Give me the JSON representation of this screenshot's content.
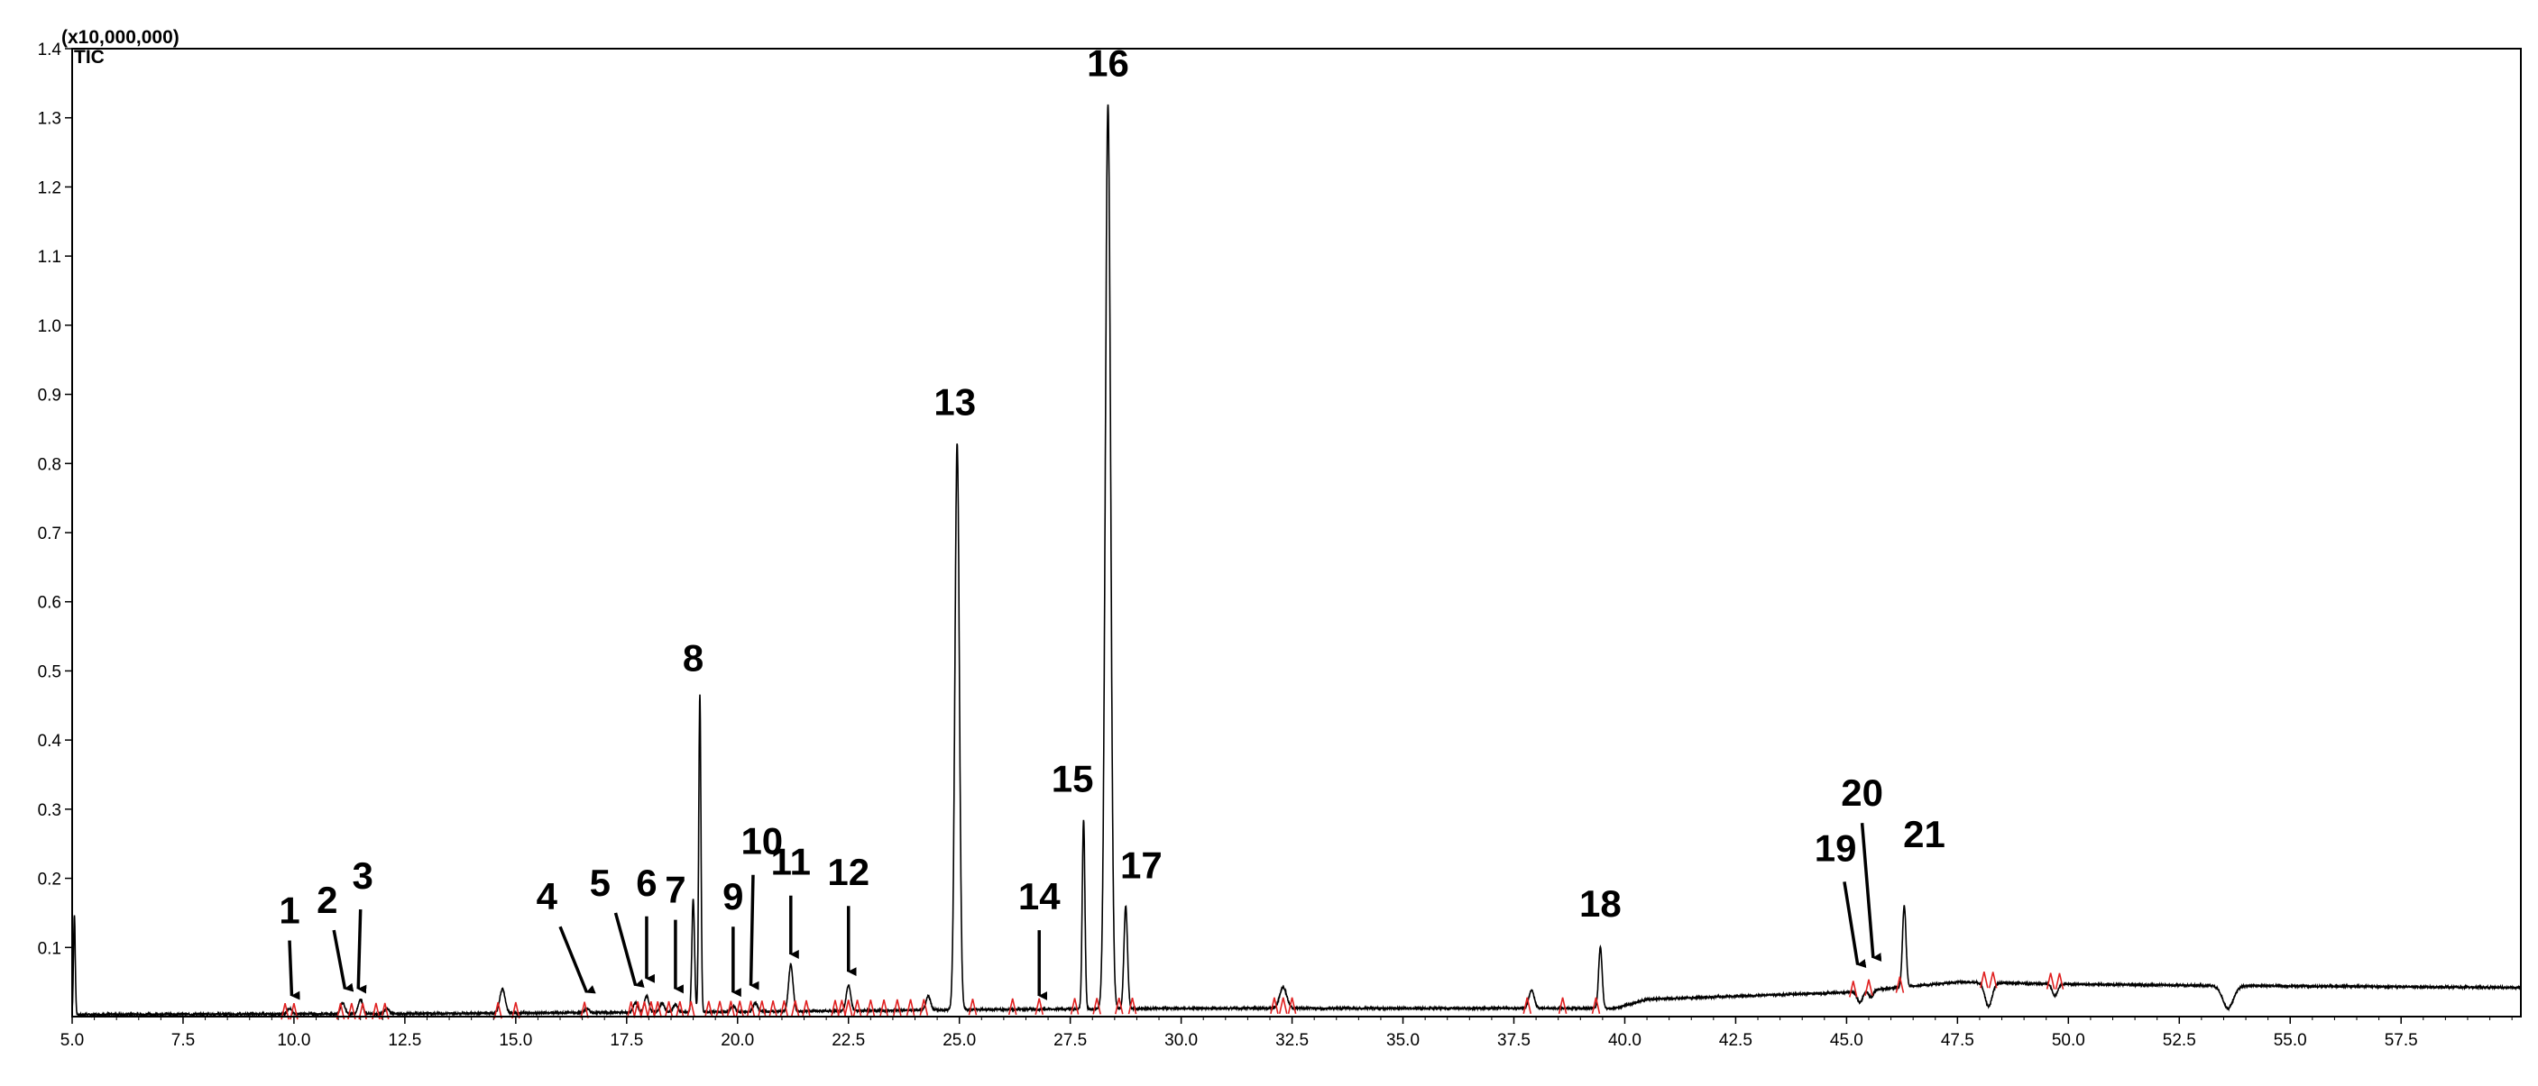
{
  "chart_data": {
    "type": "line",
    "multiplier_label": "(x10,000,000)",
    "trace_label": "TIC",
    "xlim": [
      5.0,
      60.2
    ],
    "ylim": [
      0,
      1.4
    ],
    "x_ticks": [
      "5.0",
      "7.5",
      "10.0",
      "12.5",
      "15.0",
      "17.5",
      "20.0",
      "22.5",
      "25.0",
      "27.5",
      "30.0",
      "32.5",
      "35.0",
      "37.5",
      "40.0",
      "42.5",
      "45.0",
      "47.5",
      "50.0",
      "52.5",
      "55.0",
      "57.5"
    ],
    "y_ticks": [
      "0.1",
      "0.2",
      "0.3",
      "0.4",
      "0.5",
      "0.6",
      "0.7",
      "0.8",
      "0.9",
      "1.0",
      "1.1",
      "1.2",
      "1.3",
      "1.4"
    ],
    "baseline": [
      [
        5.0,
        0.003
      ],
      [
        12.0,
        0.004
      ],
      [
        20.0,
        0.007
      ],
      [
        25.0,
        0.01
      ],
      [
        30.0,
        0.012
      ],
      [
        35.0,
        0.012
      ],
      [
        39.8,
        0.012
      ],
      [
        40.5,
        0.025
      ],
      [
        45.0,
        0.035
      ],
      [
        47.5,
        0.05
      ],
      [
        50.0,
        0.047
      ],
      [
        53.0,
        0.045
      ],
      [
        60.2,
        0.042
      ]
    ],
    "peaks": [
      {
        "x": 5.05,
        "y": 0.147,
        "w": 0.02
      },
      {
        "x": 9.9,
        "y": 0.012,
        "w": 0.05
      },
      {
        "x": 11.1,
        "y": 0.02,
        "w": 0.05
      },
      {
        "x": 11.5,
        "y": 0.025,
        "w": 0.05
      },
      {
        "x": 12.1,
        "y": 0.012,
        "w": 0.05
      },
      {
        "x": 14.7,
        "y": 0.04,
        "w": 0.06
      },
      {
        "x": 16.6,
        "y": 0.012,
        "w": 0.05
      },
      {
        "x": 17.7,
        "y": 0.02,
        "w": 0.05
      },
      {
        "x": 17.95,
        "y": 0.03,
        "w": 0.05
      },
      {
        "x": 18.3,
        "y": 0.02,
        "w": 0.05
      },
      {
        "x": 18.6,
        "y": 0.018,
        "w": 0.05
      },
      {
        "x": 19.0,
        "y": 0.17,
        "w": 0.03
      },
      {
        "x": 19.15,
        "y": 0.465,
        "w": 0.025
      },
      {
        "x": 19.9,
        "y": 0.015,
        "w": 0.05
      },
      {
        "x": 20.4,
        "y": 0.02,
        "w": 0.05
      },
      {
        "x": 21.2,
        "y": 0.075,
        "w": 0.05
      },
      {
        "x": 22.5,
        "y": 0.045,
        "w": 0.05
      },
      {
        "x": 24.3,
        "y": 0.03,
        "w": 0.05
      },
      {
        "x": 24.95,
        "y": 0.83,
        "w": 0.05
      },
      {
        "x": 26.8,
        "y": 0.01,
        "w": 0.05
      },
      {
        "x": 27.8,
        "y": 0.285,
        "w": 0.03
      },
      {
        "x": 28.35,
        "y": 1.32,
        "w": 0.06
      },
      {
        "x": 28.75,
        "y": 0.16,
        "w": 0.04
      },
      {
        "x": 32.3,
        "y": 0.042,
        "w": 0.08
      },
      {
        "x": 37.9,
        "y": 0.038,
        "w": 0.06
      },
      {
        "x": 39.45,
        "y": 0.1,
        "w": 0.04
      },
      {
        "x": 45.3,
        "y": 0.02,
        "w": 0.06
      },
      {
        "x": 45.55,
        "y": 0.028,
        "w": 0.05
      },
      {
        "x": 46.3,
        "y": 0.16,
        "w": 0.04
      },
      {
        "x": 48.2,
        "y": 0.015,
        "w": 0.08
      },
      {
        "x": 49.7,
        "y": 0.03,
        "w": 0.06
      },
      {
        "x": 53.6,
        "y": 0.012,
        "w": 0.12
      }
    ],
    "red_marks": [
      9.8,
      10.0,
      11.05,
      11.3,
      11.55,
      11.85,
      12.05,
      14.6,
      15.0,
      16.55,
      17.6,
      17.75,
      17.9,
      18.05,
      18.2,
      18.45,
      18.7,
      18.95,
      19.35,
      19.6,
      19.85,
      20.05,
      20.3,
      20.55,
      20.8,
      21.05,
      21.3,
      21.55,
      22.2,
      22.35,
      22.5,
      22.7,
      23.0,
      23.3,
      23.6,
      23.9,
      24.2,
      25.3,
      26.2,
      26.8,
      27.6,
      28.1,
      28.6,
      28.9,
      32.1,
      32.3,
      32.5,
      37.8,
      38.6,
      39.35,
      45.15,
      45.5,
      46.2,
      48.1,
      48.3,
      49.6,
      49.8
    ],
    "peak_labels": [
      {
        "label": "1",
        "x": 9.9,
        "y": 0.135,
        "arrow_from": [
          9.9,
          0.11
        ],
        "arrow_to": [
          9.95,
          0.03
        ]
      },
      {
        "label": "2",
        "x": 10.75,
        "y": 0.15,
        "arrow_from": [
          10.9,
          0.125
        ],
        "arrow_to": [
          11.15,
          0.04
        ]
      },
      {
        "label": "3",
        "x": 11.55,
        "y": 0.185,
        "arrow_from": [
          11.5,
          0.155
        ],
        "arrow_to": [
          11.45,
          0.04
        ]
      },
      {
        "label": "4",
        "x": 15.7,
        "y": 0.155,
        "arrow_from": [
          16.0,
          0.13
        ],
        "arrow_to": [
          16.6,
          0.035
        ]
      },
      {
        "label": "5",
        "x": 16.9,
        "y": 0.175,
        "arrow_from": [
          17.25,
          0.15
        ],
        "arrow_to": [
          17.7,
          0.045
        ]
      },
      {
        "label": "6",
        "x": 17.95,
        "y": 0.175,
        "arrow_from": [
          17.95,
          0.145
        ],
        "arrow_to": [
          17.95,
          0.055
        ]
      },
      {
        "label": "7",
        "x": 18.6,
        "y": 0.165,
        "arrow_from": [
          18.6,
          0.14
        ],
        "arrow_to": [
          18.6,
          0.04
        ]
      },
      {
        "label": "8",
        "x": 19.0,
        "y": 0.5,
        "arrow_from": null,
        "arrow_to": null
      },
      {
        "label": "9",
        "x": 19.9,
        "y": 0.155,
        "arrow_from": [
          19.9,
          0.13
        ],
        "arrow_to": [
          19.9,
          0.035
        ]
      },
      {
        "label": "10",
        "x": 20.55,
        "y": 0.235,
        "arrow_from": [
          20.35,
          0.205
        ],
        "arrow_to": [
          20.3,
          0.045
        ]
      },
      {
        "label": "11",
        "x": 21.2,
        "y": 0.205,
        "arrow_from": [
          21.2,
          0.175
        ],
        "arrow_to": [
          21.2,
          0.09
        ]
      },
      {
        "label": "12",
        "x": 22.5,
        "y": 0.19,
        "arrow_from": [
          22.5,
          0.16
        ],
        "arrow_to": [
          22.5,
          0.065
        ]
      },
      {
        "label": "13",
        "x": 24.9,
        "y": 0.87,
        "arrow_from": null,
        "arrow_to": null
      },
      {
        "label": "14",
        "x": 26.8,
        "y": 0.155,
        "arrow_from": [
          26.8,
          0.125
        ],
        "arrow_to": [
          26.8,
          0.03
        ]
      },
      {
        "label": "15",
        "x": 27.55,
        "y": 0.325,
        "arrow_from": null,
        "arrow_to": null
      },
      {
        "label": "16",
        "x": 28.35,
        "y": 1.36,
        "arrow_from": null,
        "arrow_to": null
      },
      {
        "label": "17",
        "x": 29.1,
        "y": 0.2,
        "arrow_from": null,
        "arrow_to": null
      },
      {
        "label": "18",
        "x": 39.45,
        "y": 0.145,
        "arrow_from": null,
        "arrow_to": null
      },
      {
        "label": "19",
        "x": 44.75,
        "y": 0.225,
        "arrow_from": [
          44.95,
          0.195
        ],
        "arrow_to": [
          45.25,
          0.075
        ]
      },
      {
        "label": "20",
        "x": 45.35,
        "y": 0.305,
        "arrow_from": [
          45.35,
          0.28
        ],
        "arrow_to": [
          45.6,
          0.085
        ]
      },
      {
        "label": "21",
        "x": 46.75,
        "y": 0.245,
        "arrow_from": null,
        "arrow_to": null
      }
    ]
  }
}
